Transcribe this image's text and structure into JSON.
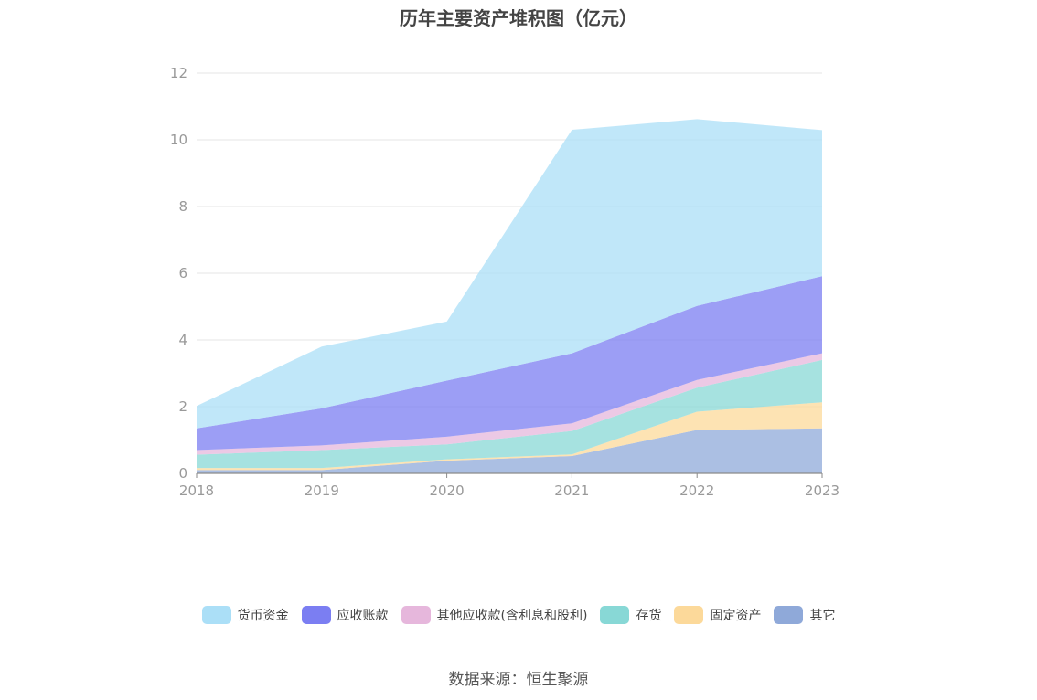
{
  "page": {
    "title": "历年主要资产堆积图（亿元）",
    "source": "数据来源：恒生聚源"
  },
  "chart_data": {
    "type": "area",
    "stacked": true,
    "title": "历年主要资产堆积图（亿元）",
    "xlabel": "",
    "ylabel": "",
    "x": [
      "2018",
      "2019",
      "2020",
      "2021",
      "2022",
      "2023"
    ],
    "ylim": [
      0,
      12
    ],
    "yticks": [
      0,
      2,
      4,
      6,
      8,
      10,
      12
    ],
    "grid": true,
    "legend_position": "bottom",
    "series": [
      {
        "name": "其它",
        "color": "#8fa9d9",
        "values": [
          0.1,
          0.1,
          0.38,
          0.52,
          1.3,
          1.35
        ]
      },
      {
        "name": "固定资产",
        "color": "#fcd99a",
        "values": [
          0.06,
          0.06,
          0.04,
          0.05,
          0.55,
          0.78
        ]
      },
      {
        "name": "存货",
        "color": "#88d8d6",
        "values": [
          0.4,
          0.54,
          0.45,
          0.7,
          0.72,
          1.27
        ]
      },
      {
        "name": "其他应收款(含利息和股利)",
        "color": "#e6b7dc",
        "values": [
          0.14,
          0.14,
          0.23,
          0.23,
          0.23,
          0.2
        ]
      },
      {
        "name": "应收账款",
        "color": "#7b7ef2",
        "values": [
          0.65,
          1.11,
          1.68,
          2.1,
          2.22,
          2.31
        ]
      },
      {
        "name": "货币资金",
        "color": "#abdff7",
        "values": [
          0.67,
          1.85,
          1.77,
          6.7,
          5.6,
          4.38
        ]
      }
    ]
  }
}
